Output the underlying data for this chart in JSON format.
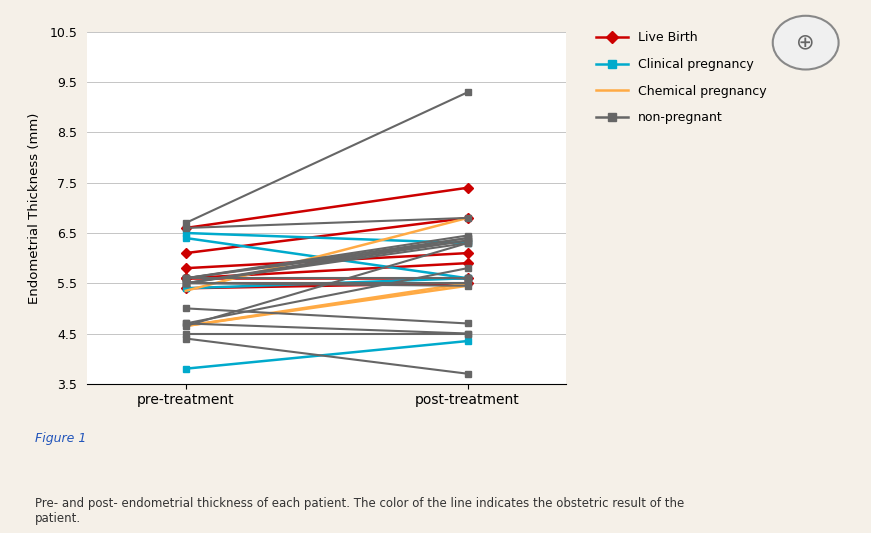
{
  "ylabel": "Endometrial Thickness (mm)",
  "xlabel_pre": "pre-treatment",
  "xlabel_post": "post-treatment",
  "ylim": [
    3.5,
    10.5
  ],
  "yticks": [
    3.5,
    4.5,
    5.5,
    6.5,
    7.5,
    8.5,
    9.5,
    10.5
  ],
  "bg_color": "#f5f0e8",
  "card_color": "#ffffff",
  "plot_bg_color": "#ffffff",
  "legend_labels": [
    "Live Birth",
    "Clinical pregnancy",
    "Chemical pregnancy",
    "non-pregnant"
  ],
  "legend_colors": [
    "#cc0000",
    "#00aacc",
    "#ffaa44",
    "#666666"
  ],
  "series": [
    {
      "category": "Live Birth",
      "pre": 6.6,
      "post": 7.4
    },
    {
      "category": "Live Birth",
      "pre": 6.1,
      "post": 6.8
    },
    {
      "category": "Live Birth",
      "pre": 5.8,
      "post": 6.1
    },
    {
      "category": "Live Birth",
      "pre": 5.6,
      "post": 5.6
    },
    {
      "category": "Live Birth",
      "pre": 5.6,
      "post": 5.9
    },
    {
      "category": "Live Birth",
      "pre": 5.4,
      "post": 5.5
    },
    {
      "category": "Clinical pregnancy",
      "pre": 6.5,
      "post": 6.3
    },
    {
      "category": "Clinical pregnancy",
      "pre": 6.4,
      "post": 5.6
    },
    {
      "category": "Clinical pregnancy",
      "pre": 5.4,
      "post": 5.6
    },
    {
      "category": "Clinical pregnancy",
      "pre": 3.8,
      "post": 4.35
    },
    {
      "category": "Chemical pregnancy",
      "pre": 5.35,
      "post": 6.8
    },
    {
      "category": "Chemical pregnancy",
      "pre": 4.65,
      "post": 5.5
    },
    {
      "category": "Chemical pregnancy",
      "pre": 4.65,
      "post": 5.45
    },
    {
      "category": "non-pregnant",
      "pre": 6.7,
      "post": 9.3
    },
    {
      "category": "non-pregnant",
      "pre": 6.6,
      "post": 6.8
    },
    {
      "category": "non-pregnant",
      "pre": 5.6,
      "post": 6.4
    },
    {
      "category": "non-pregnant",
      "pre": 5.6,
      "post": 6.35
    },
    {
      "category": "non-pregnant",
      "pre": 5.5,
      "post": 6.3
    },
    {
      "category": "non-pregnant",
      "pre": 5.6,
      "post": 6.45
    },
    {
      "category": "non-pregnant",
      "pre": 5.5,
      "post": 6.4
    },
    {
      "category": "non-pregnant",
      "pre": 5.6,
      "post": 5.6
    },
    {
      "category": "non-pregnant",
      "pre": 5.5,
      "post": 5.5
    },
    {
      "category": "non-pregnant",
      "pre": 5.5,
      "post": 5.45
    },
    {
      "category": "non-pregnant",
      "pre": 5.0,
      "post": 4.7
    },
    {
      "category": "non-pregnant",
      "pre": 4.7,
      "post": 4.5
    },
    {
      "category": "non-pregnant",
      "pre": 4.7,
      "post": 5.8
    },
    {
      "category": "non-pregnant",
      "pre": 4.65,
      "post": 6.3
    },
    {
      "category": "non-pregnant",
      "pre": 4.5,
      "post": 4.5
    },
    {
      "category": "non-pregnant",
      "pre": 4.4,
      "post": 3.7
    },
    {
      "category": "non-pregnant",
      "pre": 5.5,
      "post": 6.35
    }
  ],
  "figure_caption": "Figure 1",
  "caption_text": "Pre- and post- endometrial thickness of each patient. The color of the line indicates the obstetric result of the\npatient."
}
